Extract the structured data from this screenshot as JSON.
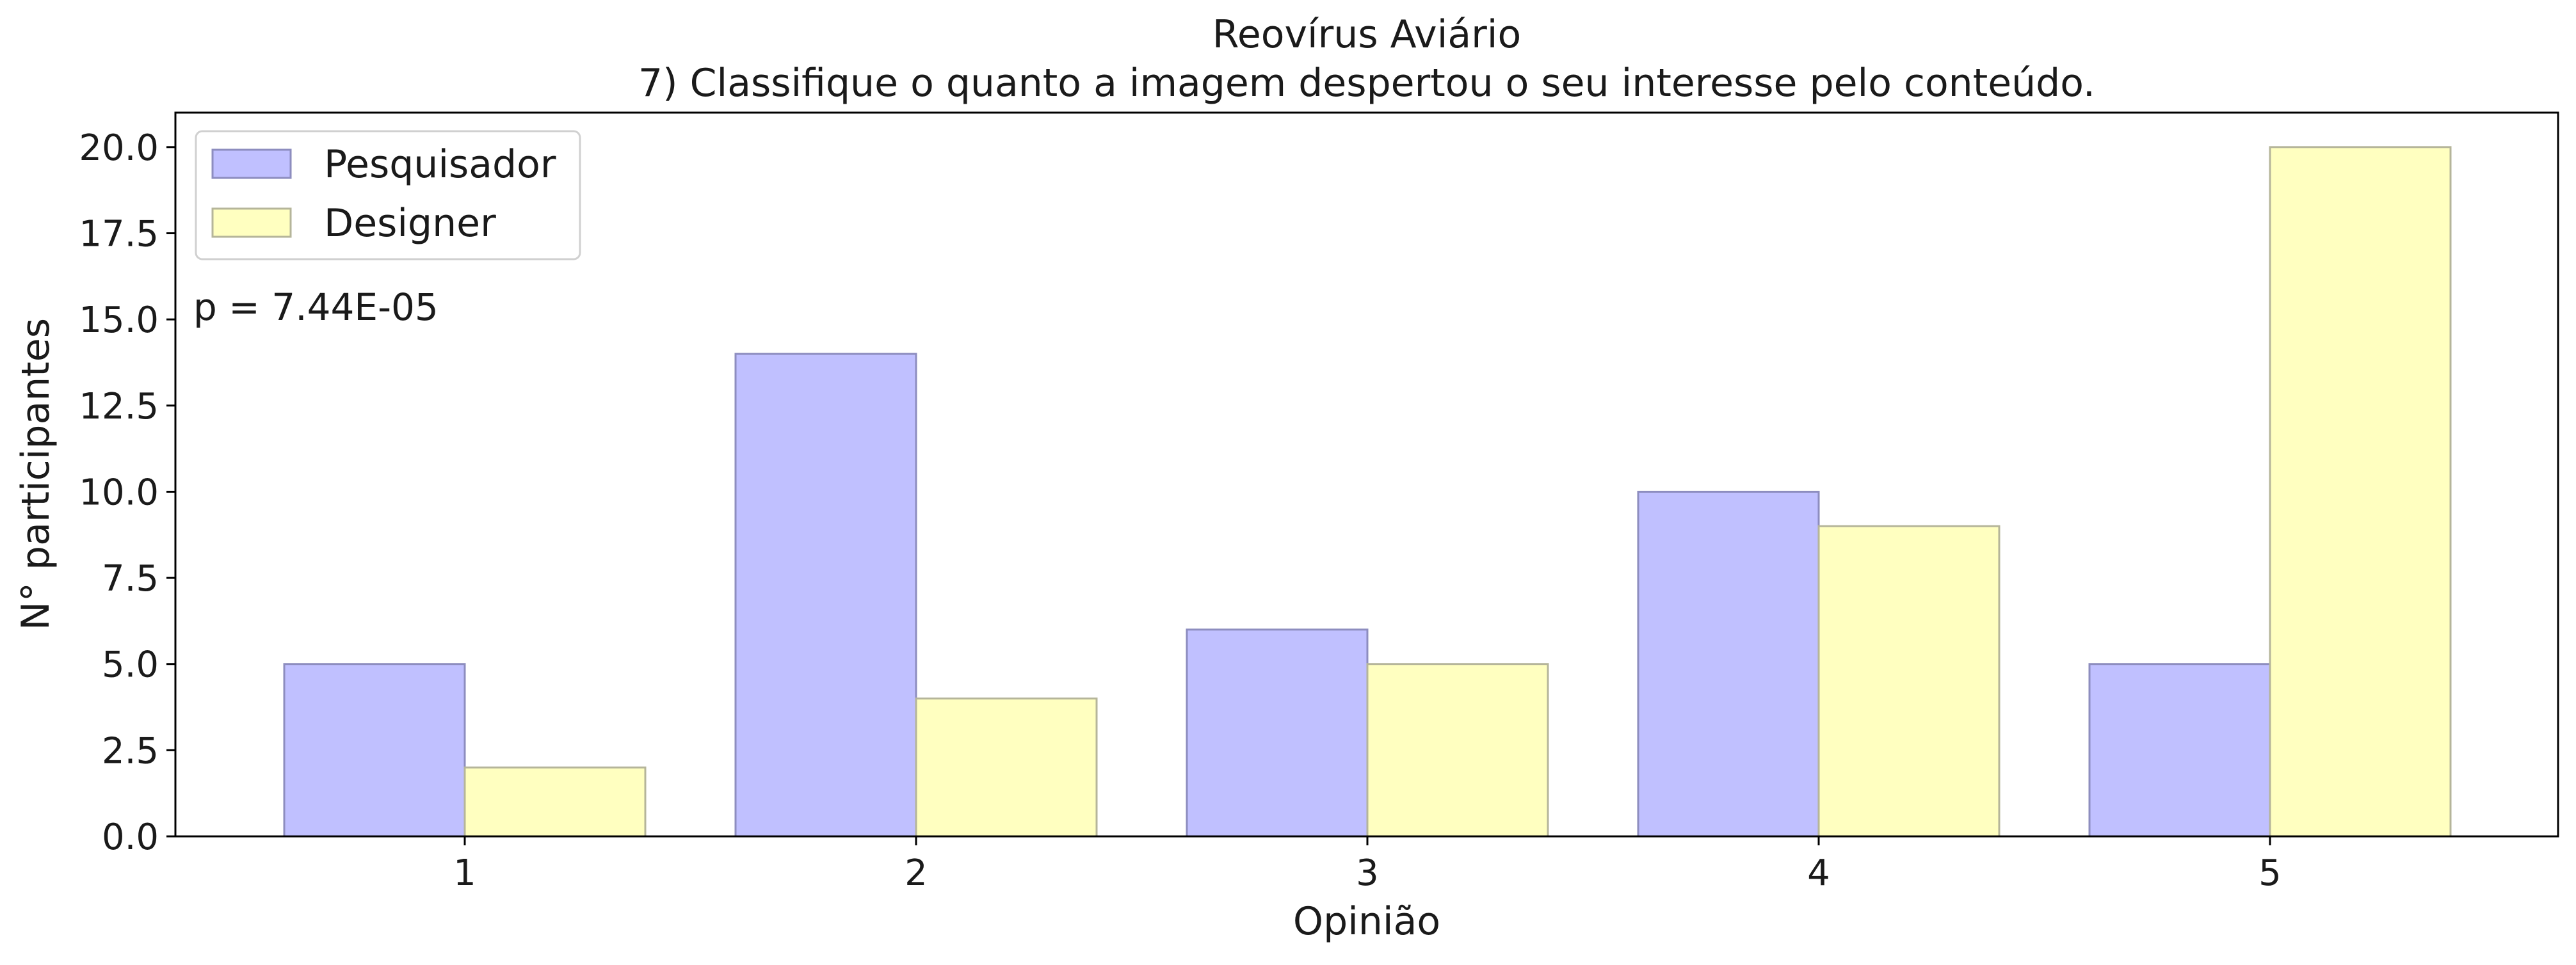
{
  "chart_data": {
    "type": "bar",
    "title": "Reovírus Aviário",
    "subtitle": "7) Classifique o quanto a imagem despertou o seu interesse pelo conteúdo.",
    "xlabel": "Opinião",
    "ylabel": "N° participantes",
    "categories": [
      "1",
      "2",
      "3",
      "4",
      "5"
    ],
    "series": [
      {
        "name": "Pesquisador",
        "values": [
          5,
          14,
          6,
          10,
          5
        ],
        "color": "#c0c0ff",
        "edge": "#8d8dbf"
      },
      {
        "name": "Designer",
        "values": [
          2,
          4,
          5,
          9,
          20
        ],
        "color": "#ffffc0",
        "edge": "#b5b59a"
      }
    ],
    "ylim": [
      0,
      21
    ],
    "yticks": [
      "0.0",
      "2.5",
      "5.0",
      "7.5",
      "10.0",
      "12.5",
      "15.0",
      "17.5",
      "20.0"
    ],
    "ytick_values": [
      0,
      2.5,
      5,
      7.5,
      10,
      12.5,
      15,
      17.5,
      20
    ],
    "annotation": "p = 7.44E-05",
    "legend_position": "top-left",
    "grid": false
  }
}
